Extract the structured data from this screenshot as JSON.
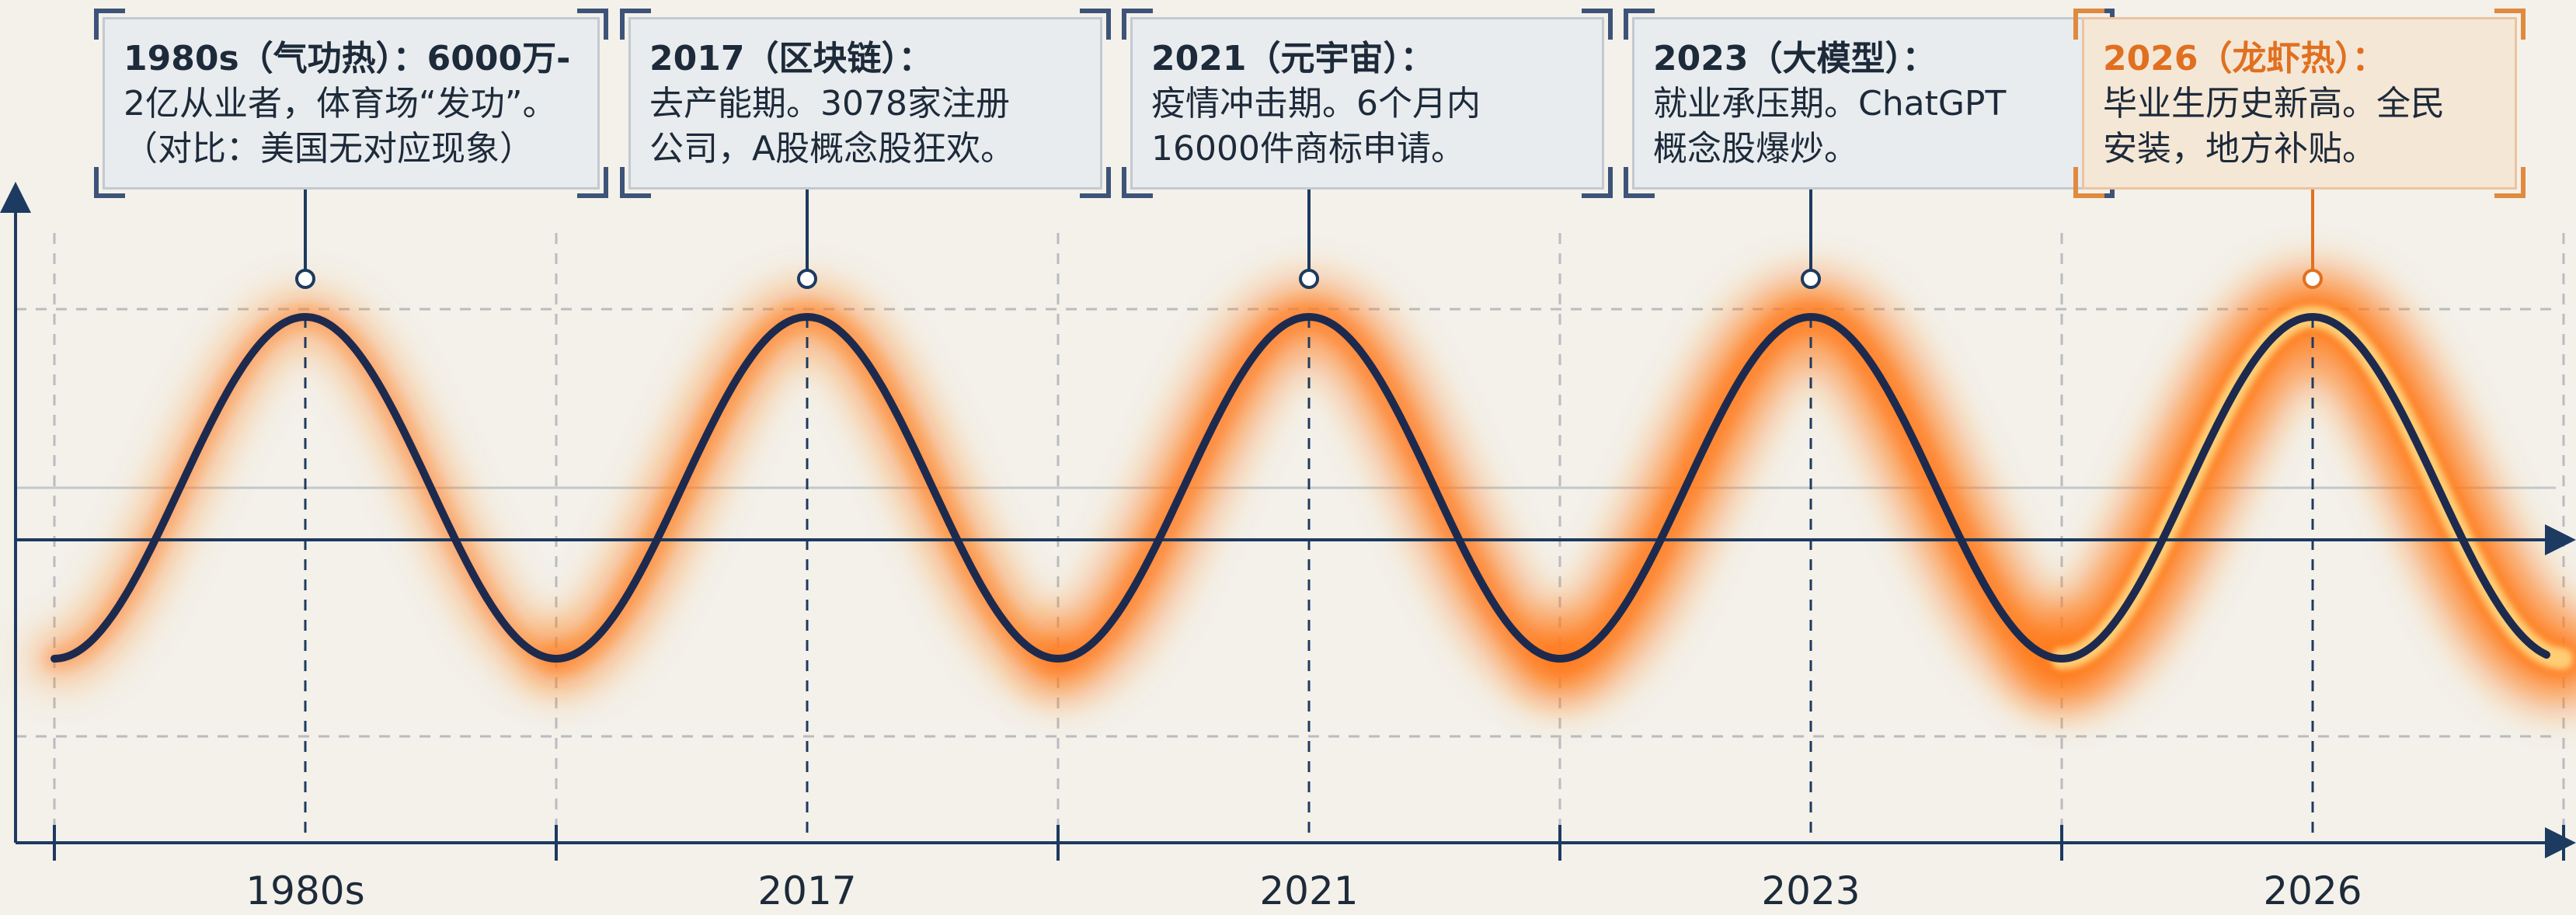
{
  "cycles": [
    {
      "year": "1980s",
      "title": "1980s（气功热）：6000万-",
      "lines": [
        "2亿从业者，体育场“发功”。",
        "（对比：美国无对应现象）"
      ],
      "glow": 0.25,
      "highlight": false
    },
    {
      "year": "2017",
      "title": "2017（区块链）：",
      "lines": [
        "去产能期。3078家注册",
        "公司，A股概念股狂欢。"
      ],
      "glow": 0.45,
      "highlight": false
    },
    {
      "year": "2021",
      "title": "2021（元宇宙）：",
      "lines": [
        "疫情冲击期。6个月内",
        "16000件商标申请。"
      ],
      "glow": 0.65,
      "highlight": false
    },
    {
      "year": "2023",
      "title": "2023（大模型）：",
      "lines": [
        "就业承压期。ChatGPT",
        "概念股爆炒。"
      ],
      "glow": 0.8,
      "highlight": false
    },
    {
      "year": "2026",
      "title": "2026（龙虾热）：",
      "lines": [
        "毕业生历史新高。全民",
        "安装，地方补贴。"
      ],
      "glow": 1.0,
      "highlight": true
    }
  ],
  "colors": {
    "wave": "#1d2a4e",
    "axis": "#1d3a60",
    "glow": "#ff7a1a",
    "glow_core": "#ffe08a",
    "highlight": "#e07020",
    "background": "#f3f1ea"
  }
}
